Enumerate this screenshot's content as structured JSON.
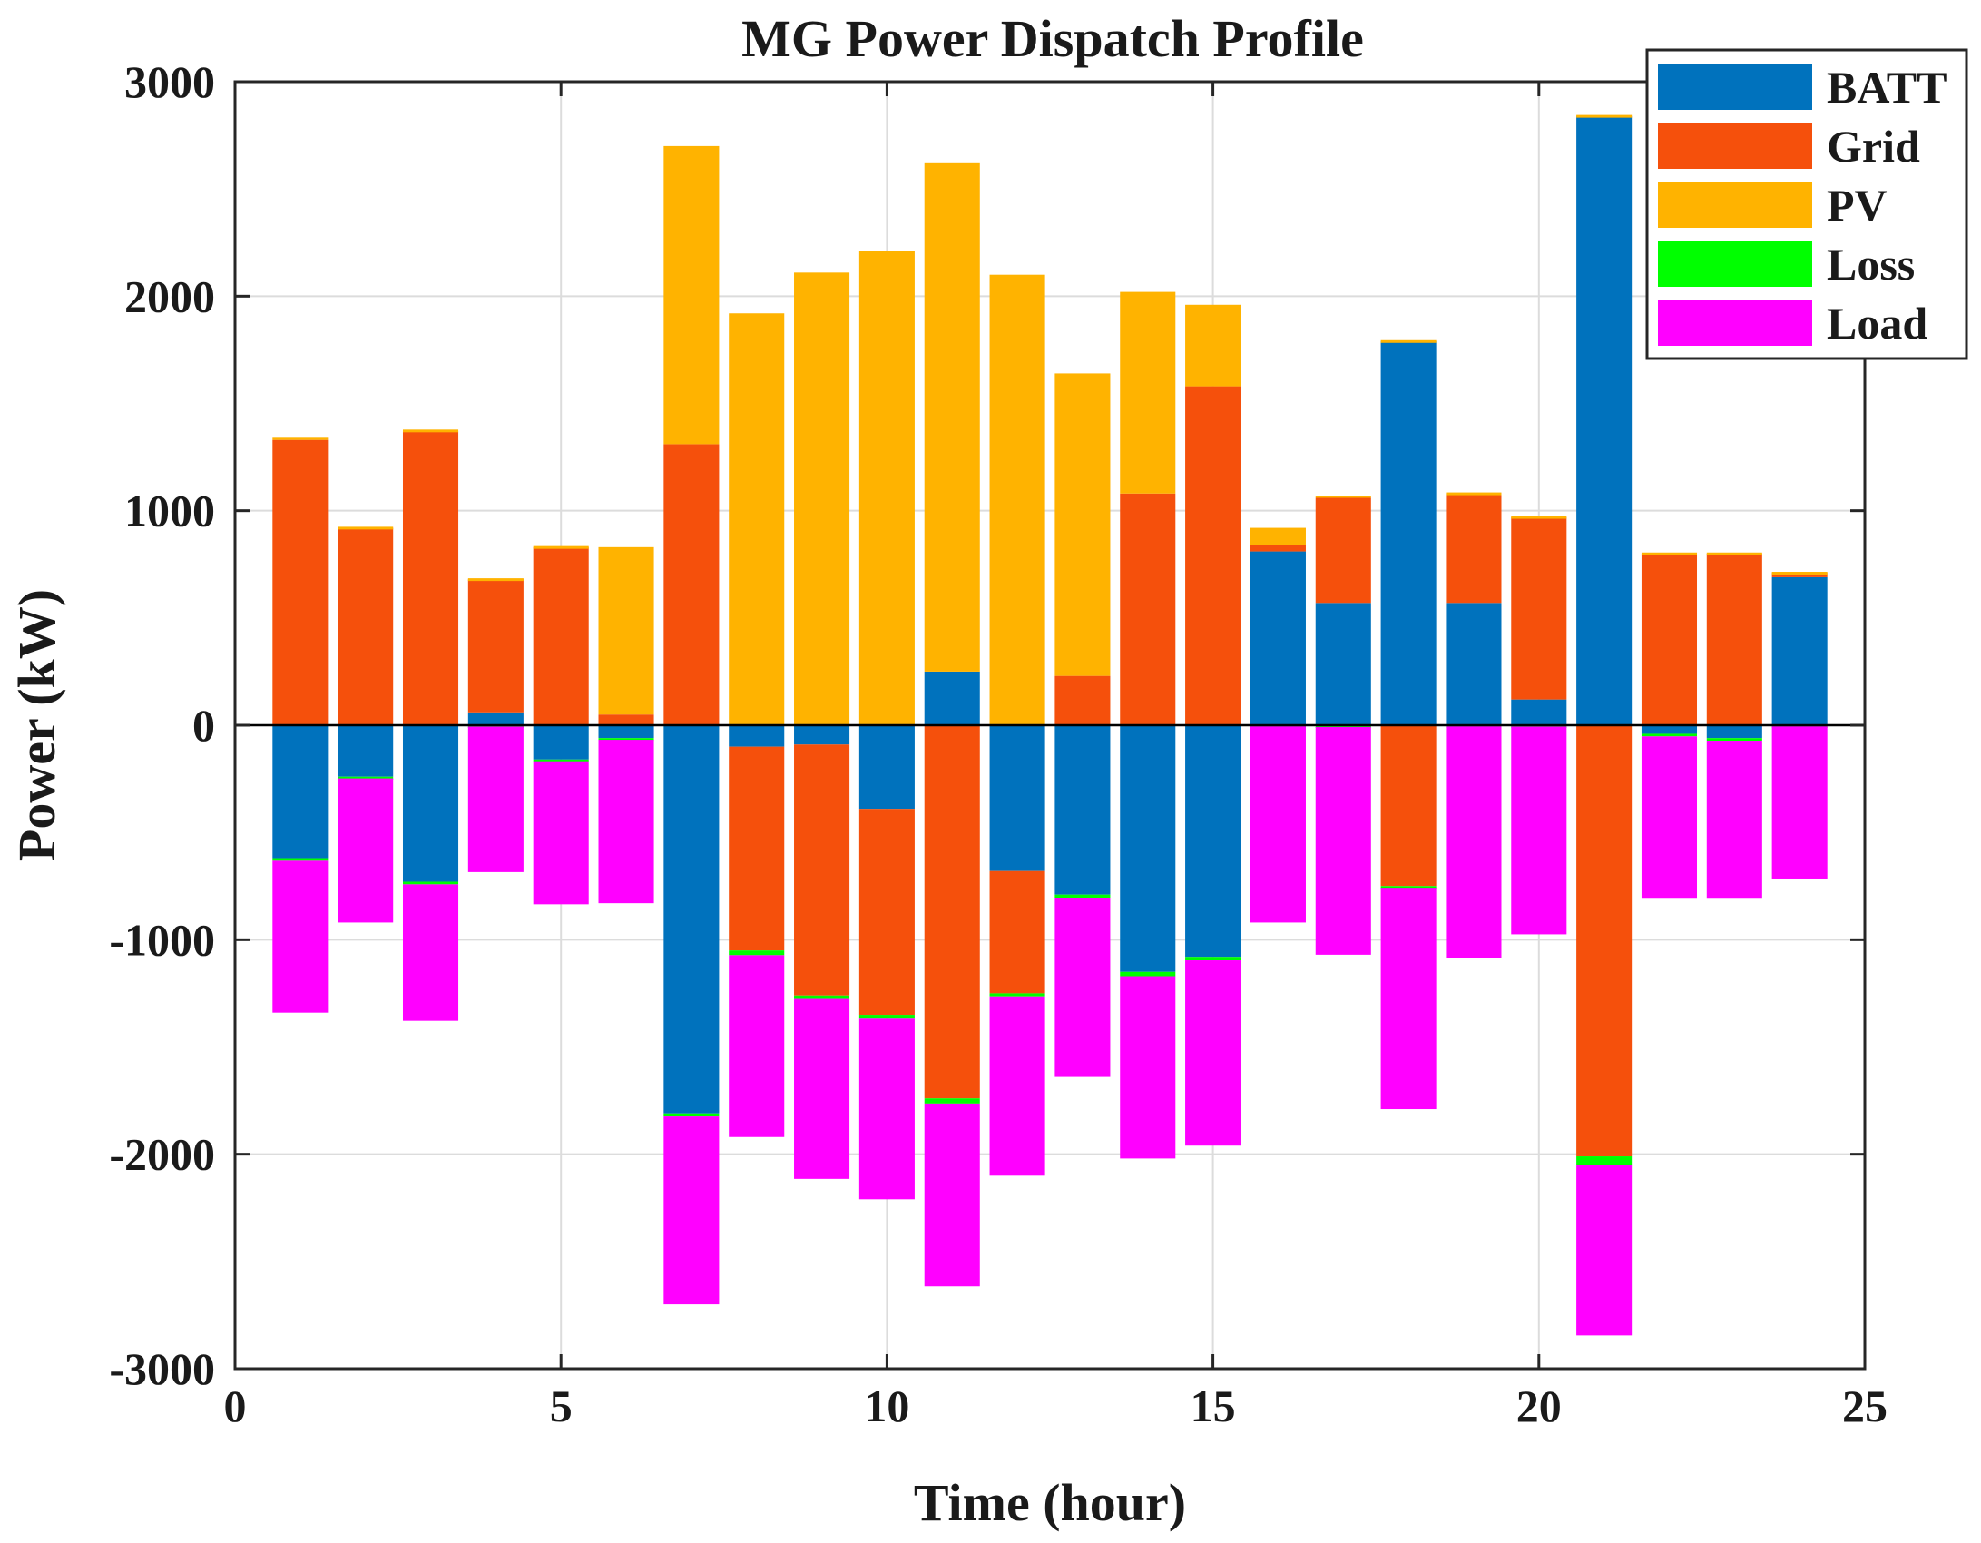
{
  "chart_data": {
    "type": "bar",
    "stacked": true,
    "title": "MG Power Dispatch Profile",
    "xlabel": "Time (hour)",
    "ylabel": "Power (kW)",
    "xlim": [
      0,
      25
    ],
    "ylim": [
      -3000,
      3000
    ],
    "xticks": [
      0,
      5,
      10,
      15,
      20,
      25
    ],
    "yticks": [
      -3000,
      -2000,
      -1000,
      0,
      1000,
      2000,
      3000
    ],
    "grid": true,
    "legend_position": "top-right",
    "categories": [
      1,
      2,
      3,
      4,
      5,
      6,
      7,
      8,
      9,
      10,
      11,
      12,
      13,
      14,
      15,
      16,
      17,
      18,
      19,
      20,
      21,
      22,
      23,
      24
    ],
    "series": [
      {
        "name": "BATT",
        "color": "#0072BD",
        "values": [
          -620,
          -240,
          -730,
          60,
          -160,
          -60,
          -1810,
          -100,
          -90,
          -390,
          250,
          -680,
          -790,
          -1150,
          -1080,
          810,
          570,
          1790,
          570,
          120,
          2840,
          -40,
          -60,
          690
        ]
      },
      {
        "name": "Grid",
        "color": "#F5500C",
        "values": [
          1330,
          920,
          1370,
          620,
          830,
          50,
          1310,
          -950,
          -1170,
          -960,
          -1740,
          -570,
          230,
          1080,
          1580,
          30,
          490,
          -750,
          510,
          850,
          -2010,
          800,
          800,
          20
        ]
      },
      {
        "name": "PV",
        "color": "#FFB300",
        "values": [
          10,
          5,
          8,
          5,
          5,
          780,
          1390,
          1920,
          2110,
          2210,
          2370,
          2100,
          1410,
          940,
          380,
          80,
          10,
          5,
          5,
          5,
          5,
          5,
          5,
          5
        ]
      },
      {
        "name": "Loss",
        "color": "#00FF00",
        "values": [
          -12,
          -8,
          -12,
          -6,
          -8,
          -8,
          -14,
          -22,
          -16,
          -18,
          -24,
          -14,
          -14,
          -20,
          -16,
          -5,
          -8,
          -8,
          -5,
          -6,
          -40,
          -12,
          -12,
          -5
        ]
      },
      {
        "name": "Load",
        "color": "#FF00FF",
        "values": [
          -708,
          -672,
          -636,
          -679,
          -667,
          -762,
          -876,
          -848,
          -839,
          -842,
          -852,
          -836,
          -836,
          -850,
          -864,
          -915,
          -1062,
          -1032,
          -1080,
          -969,
          -795,
          -753,
          -733,
          -710
        ]
      }
    ]
  }
}
